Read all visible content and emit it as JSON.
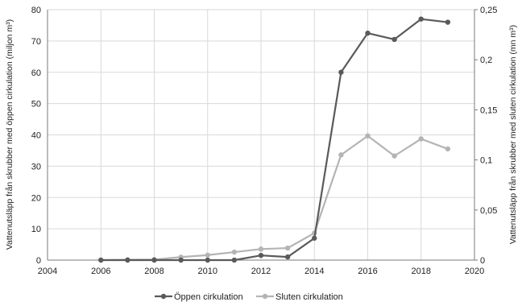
{
  "chart_data": {
    "type": "line",
    "title": "",
    "xlabel": "",
    "ylabel_left": "Vattenutsläpp från skrubber med öppen cirkulation (miljon m³)",
    "ylabel_right": "Vattenutsläpp från skrubber med sluten cirkulation (mn m³)",
    "xlim": [
      2004,
      2020
    ],
    "ylim_left": [
      0,
      80
    ],
    "ylim_right": [
      0,
      0.25
    ],
    "x_ticks": [
      "2004",
      "2006",
      "2008",
      "2010",
      "2012",
      "2014",
      "2016",
      "2018",
      "2020"
    ],
    "y_left_ticks": [
      "0",
      "10",
      "20",
      "30",
      "40",
      "50",
      "60",
      "70",
      "80"
    ],
    "y_right_ticks": [
      "0",
      "0,05",
      "0,1",
      "0,15",
      "0,2",
      "0,25"
    ],
    "grid": true,
    "legend_position": "bottom",
    "series": [
      {
        "name": "Öppen cirkulation",
        "axis": "left",
        "color": "#5a5a5a",
        "x": [
          2006,
          2007,
          2008,
          2009,
          2010,
          2011,
          2012,
          2013,
          2014,
          2015,
          2016,
          2017,
          2018,
          2019
        ],
        "y": [
          0,
          0,
          0,
          0,
          0,
          0,
          1.5,
          1,
          7,
          60,
          72.5,
          70.5,
          77,
          76
        ]
      },
      {
        "name": "Sluten cirkulation",
        "axis": "right",
        "color": "#b4b4b4",
        "x": [
          2006,
          2007,
          2008,
          2009,
          2010,
          2011,
          2012,
          2013,
          2014,
          2015,
          2016,
          2017,
          2018,
          2019
        ],
        "y": [
          0,
          0.0003,
          0.0005,
          0.003,
          0.005,
          0.008,
          0.011,
          0.012,
          0.027,
          0.105,
          0.124,
          0.104,
          0.121,
          0.111
        ]
      }
    ]
  }
}
